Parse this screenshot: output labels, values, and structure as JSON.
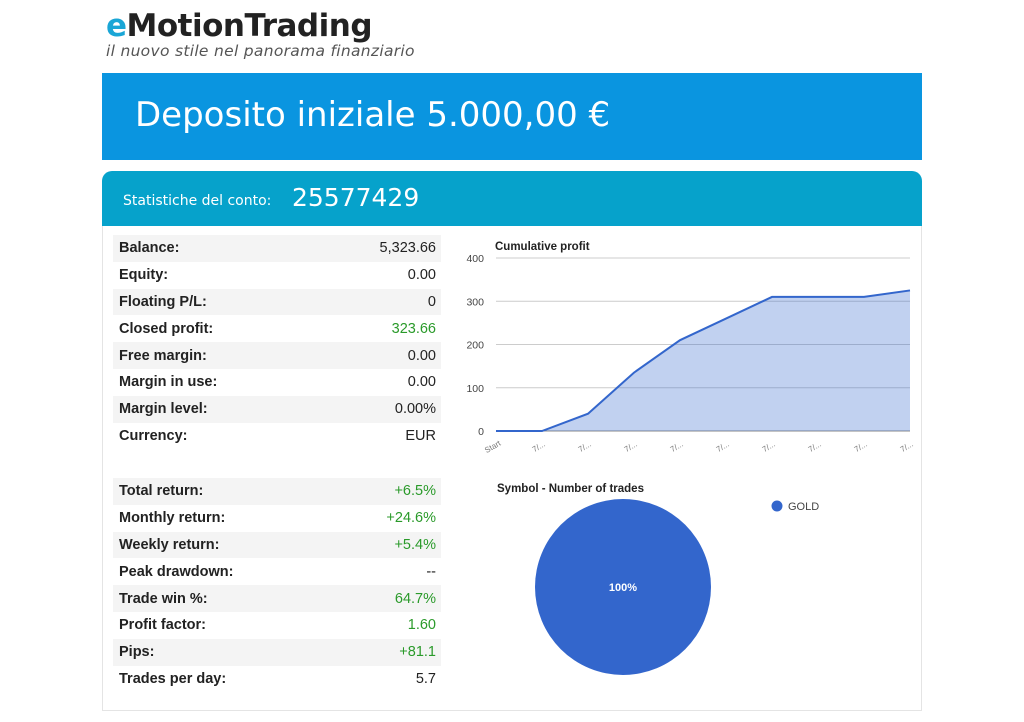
{
  "brand": {
    "letter_e": "e",
    "rest": "MotionTrading",
    "tagline": "il nuovo stile nel panorama finanziario"
  },
  "deposit": {
    "text": "Deposito iniziale 5.000,00 €"
  },
  "stats": {
    "label": "Statistiche del conto:",
    "account_id": "25577429"
  },
  "account_table": [
    {
      "label": "Balance:",
      "value": "5,323.66",
      "positive": false
    },
    {
      "label": "Equity:",
      "value": "0.00",
      "positive": false
    },
    {
      "label": "Floating P/L:",
      "value": "0",
      "positive": false
    },
    {
      "label": "Closed profit:",
      "value": "323.66",
      "positive": true
    },
    {
      "label": "Free margin:",
      "value": "0.00",
      "positive": false
    },
    {
      "label": "Margin in use:",
      "value": "0.00",
      "positive": false
    },
    {
      "label": "Margin level:",
      "value": "0.00%",
      "positive": false
    },
    {
      "label": "Currency:",
      "value": "EUR",
      "positive": false
    }
  ],
  "returns_table": [
    {
      "label": "Total return:",
      "value": "+6.5%",
      "positive": true
    },
    {
      "label": "Monthly return:",
      "value": "+24.6%",
      "positive": true
    },
    {
      "label": "Weekly return:",
      "value": "+5.4%",
      "positive": true
    },
    {
      "label": "Peak drawdown:",
      "value": "--",
      "positive": false
    },
    {
      "label": "Trade win %:",
      "value": "64.7%",
      "positive": true
    },
    {
      "label": "Profit factor:",
      "value": "1.60",
      "positive": true
    },
    {
      "label": "Pips:",
      "value": "+81.1",
      "positive": true
    },
    {
      "label": "Trades per day:",
      "value": "5.7",
      "positive": false
    }
  ],
  "chart_data": [
    {
      "type": "area",
      "title": "Cumulative profit",
      "categories": [
        "Start",
        "7/...",
        "7/...",
        "7/...",
        "7/...",
        "7/...",
        "7/...",
        "7/...",
        "7/...",
        "7/..."
      ],
      "values": [
        0,
        0,
        40,
        135,
        210,
        260,
        310,
        310,
        310,
        325
      ],
      "ylim": [
        0,
        400
      ],
      "yticks": [
        "0",
        "100",
        "200",
        "300",
        "400"
      ],
      "grid": true,
      "color": "#3366cc"
    },
    {
      "type": "pie",
      "title": "Symbol - Number of trades",
      "slices": [
        {
          "label": "GOLD",
          "value": 100,
          "display": "100%"
        }
      ],
      "legend": "right",
      "color": "#3366cc"
    }
  ]
}
